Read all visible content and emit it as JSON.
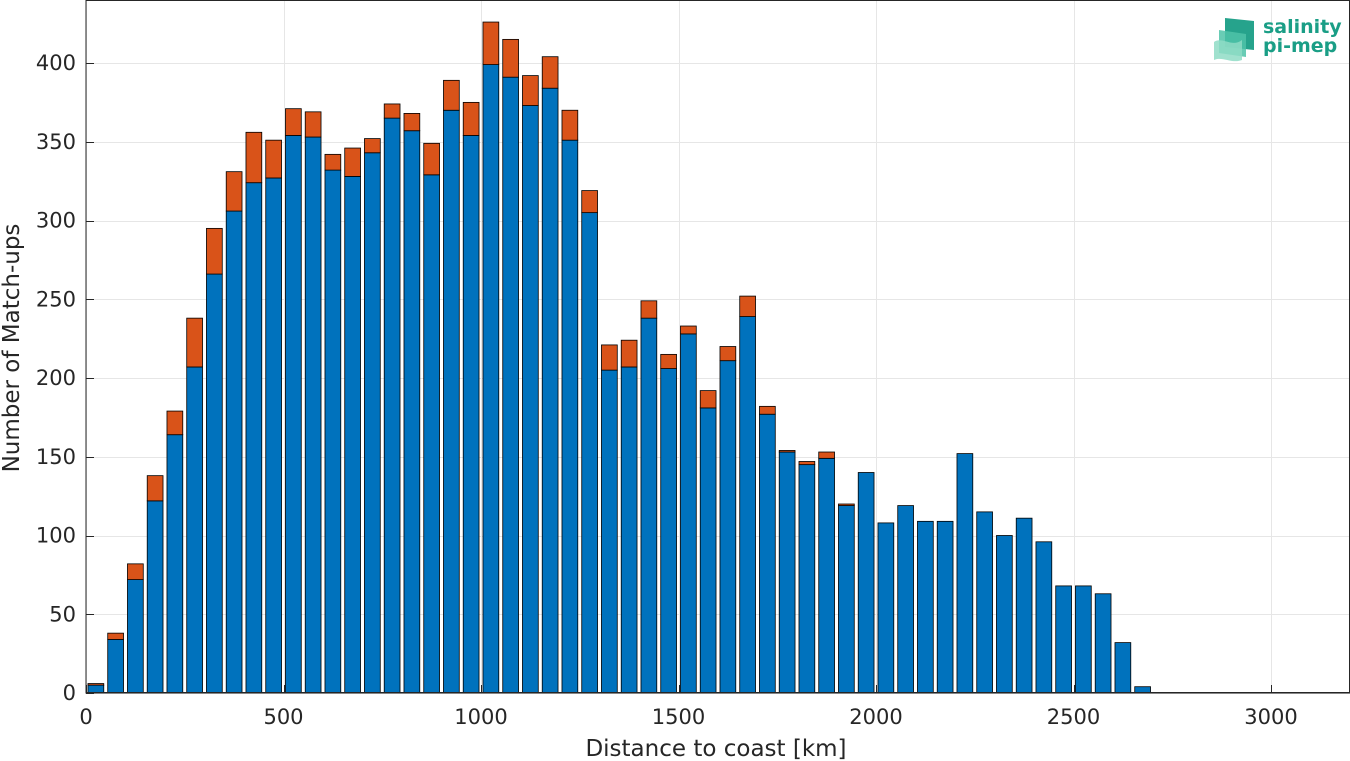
{
  "chart_data": {
    "type": "bar",
    "stacked": true,
    "xlabel": "Distance to coast [km]",
    "ylabel": "Number of Match-ups",
    "xlim": [
      0,
      3200
    ],
    "ylim": [
      0,
      440
    ],
    "xticks": [
      0,
      500,
      1000,
      1500,
      2000,
      2500,
      3000
    ],
    "yticks": [
      0,
      50,
      100,
      150,
      200,
      250,
      300,
      350,
      400
    ],
    "grid": true,
    "bin_width": 50,
    "x": [
      25,
      75,
      125,
      175,
      225,
      275,
      325,
      375,
      425,
      475,
      525,
      575,
      625,
      675,
      725,
      775,
      825,
      875,
      925,
      975,
      1025,
      1075,
      1125,
      1175,
      1225,
      1275,
      1325,
      1375,
      1425,
      1475,
      1525,
      1575,
      1625,
      1675,
      1725,
      1775,
      1825,
      1875,
      1925,
      1975,
      2025,
      2075,
      2125,
      2175,
      2225,
      2275,
      2325,
      2375,
      2425,
      2475,
      2525,
      2575,
      2625,
      2675,
      2725,
      2775,
      2825,
      2875,
      2925,
      2975,
      3025,
      3075,
      3125,
      3175
    ],
    "series": [
      {
        "color": "#0072BD",
        "values": [
          5,
          34,
          72,
          122,
          164,
          207,
          266,
          306,
          324,
          327,
          354,
          353,
          332,
          328,
          343,
          365,
          357,
          329,
          370,
          354,
          399,
          391,
          373,
          384,
          351,
          305,
          205,
          207,
          238,
          206,
          228,
          181,
          211,
          239,
          177,
          153,
          145,
          149,
          119,
          140,
          108,
          119,
          109,
          109,
          152,
          115,
          100,
          111,
          96,
          68,
          68,
          63,
          32,
          4,
          0,
          0,
          0,
          0,
          0,
          0,
          0,
          0,
          0,
          0
        ]
      },
      {
        "color": "#D95319",
        "values": [
          1,
          4,
          10,
          16,
          15,
          31,
          29,
          25,
          32,
          24,
          17,
          16,
          10,
          18,
          9,
          9,
          11,
          20,
          19,
          21,
          27,
          24,
          19,
          20,
          19,
          14,
          16,
          17,
          11,
          9,
          5,
          11,
          9,
          13,
          5,
          1,
          2,
          4,
          1,
          0,
          0,
          0,
          0,
          0,
          0,
          0,
          0,
          0,
          0,
          0,
          0,
          0,
          0,
          0,
          0,
          0,
          0,
          0,
          0,
          0,
          0,
          0,
          0,
          0
        ]
      }
    ]
  },
  "logo": {
    "line1": "salinity",
    "line2": "pi-mep",
    "color": "#1a9e86"
  }
}
